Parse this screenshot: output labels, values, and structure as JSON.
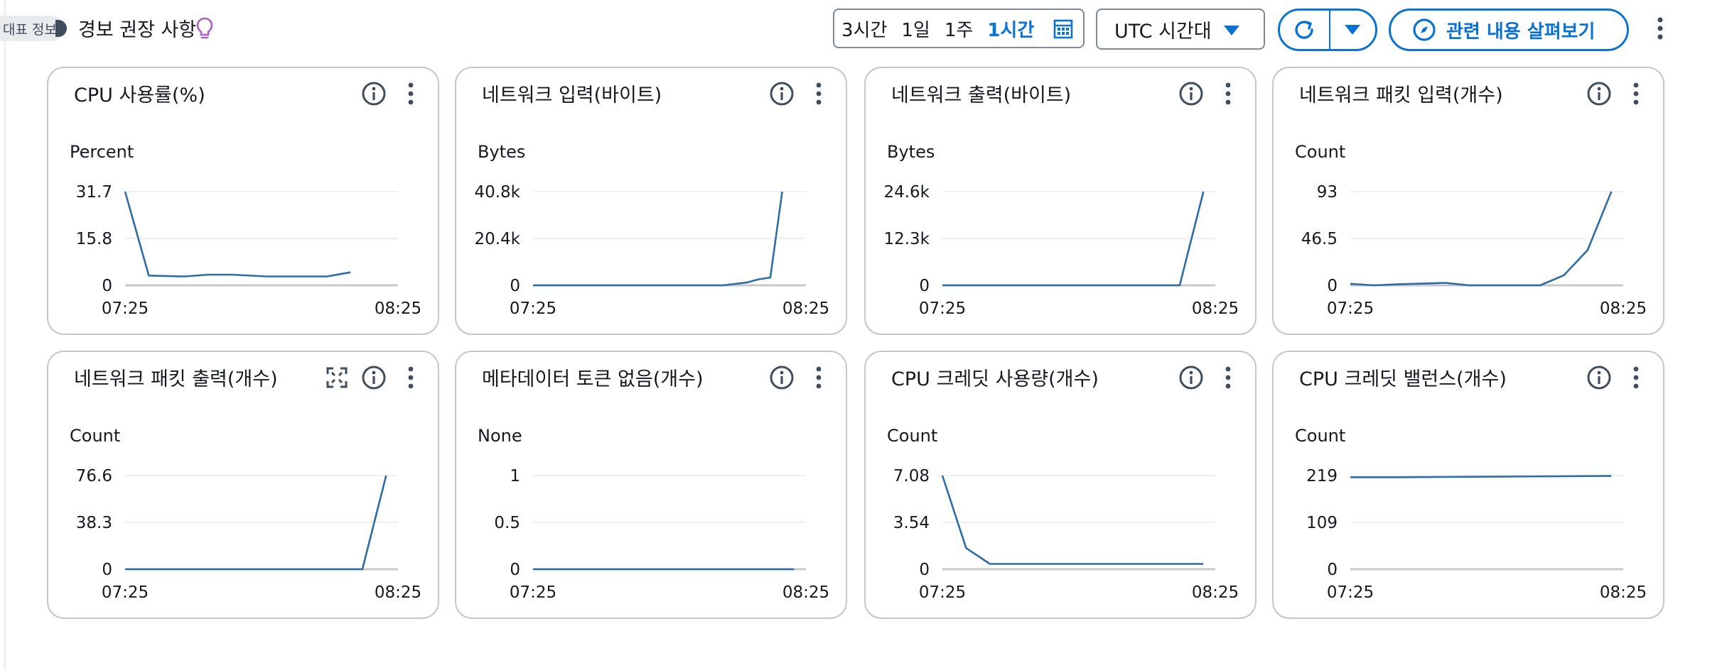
{
  "header": {
    "info_pill": "대표 정보",
    "title": "경보 권장 사항",
    "time_range": {
      "items": [
        "3시간",
        "1일",
        "1주",
        "1시간"
      ],
      "active": "1시간"
    },
    "timezone": "UTC 시간대",
    "explore_label": "관련 내용 살펴보기"
  },
  "colors": {
    "accent": "#0972d3",
    "line": "#2e6da4",
    "border": "#c6c6cd",
    "bulb": "#a65fc9"
  },
  "icons": [
    "bulb-icon",
    "calendar-icon",
    "caret-down-icon",
    "refresh-icon",
    "compass-icon",
    "info-icon",
    "kebab-icon",
    "expand-icon"
  ],
  "widgets": [
    {
      "title": "CPU 사용률(%)",
      "unit": "Percent",
      "ticks": [
        "31.7",
        "15.8",
        "0"
      ],
      "ymax": 31.7,
      "xlabels": [
        "07:25",
        "08:25"
      ],
      "points": [
        [
          0,
          31.7
        ],
        [
          4,
          3.3
        ],
        [
          10,
          3.0
        ],
        [
          14,
          3.6
        ],
        [
          18,
          3.6
        ],
        [
          24,
          3.0
        ],
        [
          30,
          3.0
        ],
        [
          34,
          3.0
        ],
        [
          38,
          4.4
        ]
      ]
    },
    {
      "title": "네트워크 입력(바이트)",
      "unit": "Bytes",
      "ticks": [
        "40.8k",
        "20.4k",
        "0"
      ],
      "ymax": 40800,
      "xlabels": [
        "07:25",
        "08:25"
      ],
      "points": [
        [
          0,
          0
        ],
        [
          32,
          0
        ],
        [
          36,
          1200
        ],
        [
          38,
          2600
        ],
        [
          40,
          3400
        ],
        [
          42,
          40800
        ]
      ]
    },
    {
      "title": "네트워크 출력(바이트)",
      "unit": "Bytes",
      "ticks": [
        "24.6k",
        "12.3k",
        "0"
      ],
      "ymax": 24600,
      "xlabels": [
        "07:25",
        "08:25"
      ],
      "points": [
        [
          0,
          0
        ],
        [
          40,
          0
        ],
        [
          44,
          24600
        ]
      ]
    },
    {
      "title": "네트워크 패킷 입력(개수)",
      "unit": "Count",
      "ticks": [
        "93",
        "46.5",
        "0"
      ],
      "ymax": 93,
      "xlabels": [
        "07:25",
        "08:25"
      ],
      "points": [
        [
          0,
          1.5
        ],
        [
          4,
          0
        ],
        [
          8,
          1.0
        ],
        [
          16,
          2.5
        ],
        [
          20,
          0
        ],
        [
          32,
          0
        ],
        [
          36,
          10
        ],
        [
          40,
          35
        ],
        [
          44,
          93
        ]
      ]
    },
    {
      "title": "네트워크 패킷 출력(개수)",
      "unit": "Count",
      "ticks": [
        "76.6",
        "38.3",
        "0"
      ],
      "ymax": 76.6,
      "xlabels": [
        "07:25",
        "08:25"
      ],
      "points": [
        [
          0,
          0
        ],
        [
          40,
          0
        ],
        [
          44,
          76.6
        ]
      ],
      "expand": true
    },
    {
      "title": "메타데이터 토큰 없음(개수)",
      "unit": "None",
      "ticks": [
        "1",
        "0.5",
        "0"
      ],
      "ymax": 1,
      "xlabels": [
        "07:25",
        "08:25"
      ],
      "points": [
        [
          0,
          0
        ],
        [
          44,
          0
        ]
      ]
    },
    {
      "title": "CPU 크레딧 사용량(개수)",
      "unit": "Count",
      "ticks": [
        "7.08",
        "3.54",
        "0"
      ],
      "ymax": 7.08,
      "xlabels": [
        "07:25",
        "08:25"
      ],
      "points": [
        [
          0,
          7.08
        ],
        [
          4,
          1.6
        ],
        [
          8,
          0.4
        ],
        [
          44,
          0.4
        ]
      ]
    },
    {
      "title": "CPU 크레딧 밸런스(개수)",
      "unit": "Count",
      "ticks": [
        "219",
        "109",
        "0"
      ],
      "ymax": 219,
      "xlabels": [
        "07:25",
        "08:25"
      ],
      "points": [
        [
          0,
          215
        ],
        [
          8,
          215
        ],
        [
          20,
          216
        ],
        [
          44,
          218
        ]
      ]
    }
  ]
}
